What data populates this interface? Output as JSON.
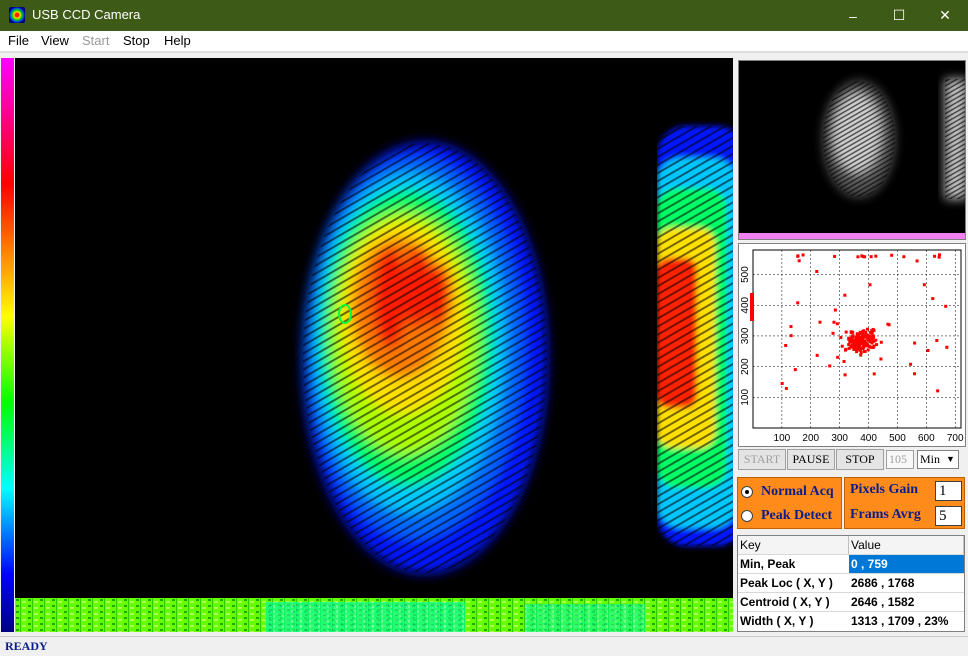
{
  "window": {
    "title": "USB CCD Camera",
    "minimize": "–",
    "maximize": "☐",
    "close": "✕"
  },
  "menu": [
    {
      "label": "File",
      "enabled": true
    },
    {
      "label": "View",
      "enabled": true
    },
    {
      "label": "Start",
      "enabled": false
    },
    {
      "label": "Stop",
      "enabled": true
    },
    {
      "label": "Help",
      "enabled": true
    }
  ],
  "scatter_plot": {
    "x_ticks": [
      "100",
      "200",
      "300",
      "400",
      "500",
      "600",
      "700"
    ],
    "y_ticks": [
      "100",
      "200",
      "300",
      "400",
      "500"
    ],
    "xlim": [
      0,
      720
    ],
    "ylim": [
      0,
      580
    ],
    "point_color": "#ff0000"
  },
  "controls": {
    "start": "START",
    "pause": "PAUSE",
    "stop": "STOP",
    "frame_count": "105",
    "mode_select": "Min"
  },
  "acquisition": {
    "normal_acq": "Normal Acq",
    "peak_detect": "Peak Detect",
    "selected": "normal"
  },
  "settings": {
    "pixels_gain_label": "Pixels Gain",
    "pixels_gain_value": "1",
    "frames_avrg_label": "Frams Avrg",
    "frames_avrg_value": "5"
  },
  "table": {
    "headers": [
      "Key",
      "Value"
    ],
    "rows": [
      [
        "Min, Peak",
        "0 , 759"
      ],
      [
        "Peak Loc ( X, Y )",
        "2686 , 1768"
      ],
      [
        "Centroid ( X, Y )",
        "2646 , 1582"
      ],
      [
        "Width ( X, Y )",
        "1313 , 1709 , 23%"
      ]
    ]
  },
  "status": "READY",
  "colors": {
    "titlebar": "#3e5a17",
    "accent_orange": "#ff8c1a",
    "label_blue": "#0a1d8c",
    "selection": "#0078d7"
  }
}
